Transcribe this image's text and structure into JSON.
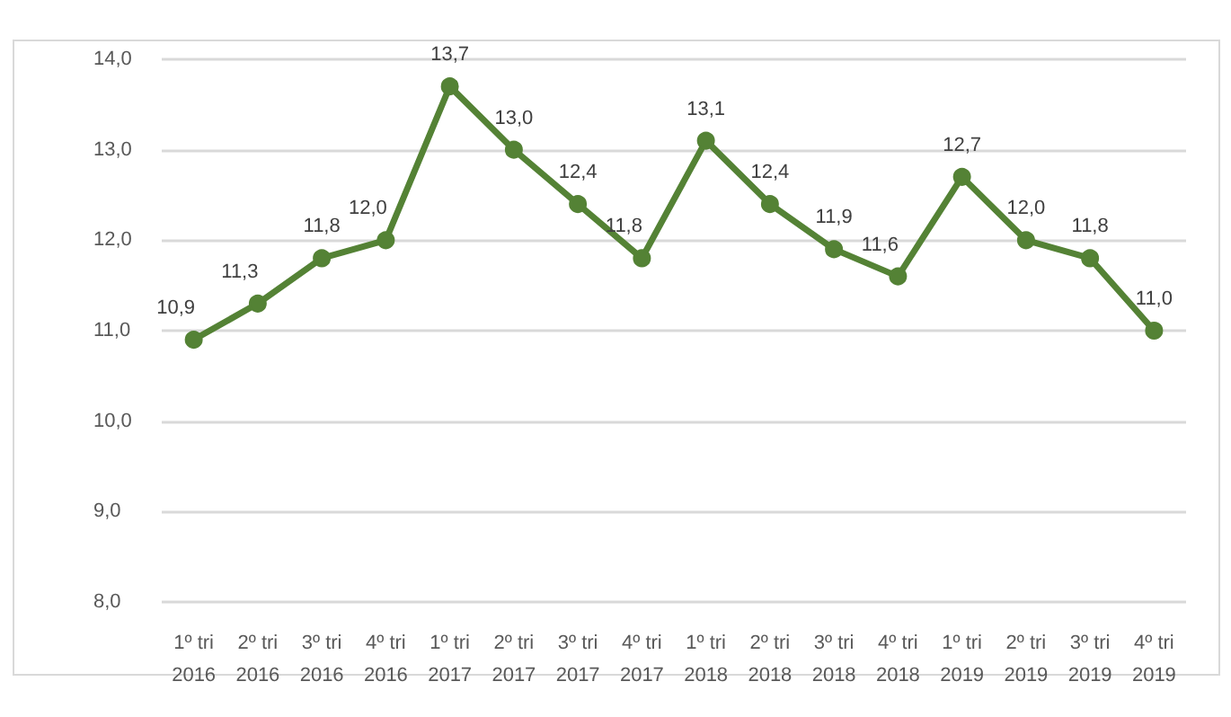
{
  "chart_data": {
    "type": "line",
    "categories": [
      "1º tri\n2016",
      "2º tri\n2016",
      "3º tri\n2016",
      "4º tri\n2016",
      "1º tri\n2017",
      "2º tri\n2017",
      "3º tri\n2017",
      "4º tri\n2017",
      "1º tri\n2018",
      "2º tri\n2018",
      "3º tri\n2018",
      "4º tri\n2018",
      "1º tri\n2019",
      "2º tri\n2019",
      "3º tri\n2019",
      "4º tri\n2019"
    ],
    "series": [
      {
        "color": "#548235",
        "values": [
          10.9,
          11.3,
          11.8,
          12.0,
          13.7,
          13.0,
          12.4,
          11.8,
          13.1,
          12.4,
          11.9,
          11.6,
          12.7,
          12.0,
          11.8,
          11.0
        ],
        "value_labels": [
          "10,9",
          "11,3",
          "11,8",
          "12,0",
          "13,7",
          "13,0",
          "12,4",
          "11,8",
          "13,1",
          "12,4",
          "11,9",
          "11,6",
          "12,7",
          "12,0",
          "11,8",
          "11,0"
        ]
      }
    ],
    "ylim": [
      8,
      14
    ],
    "yticks": [
      {
        "value": 8,
        "label": "8,0"
      },
      {
        "value": 9,
        "label": "9,0"
      },
      {
        "value": 10,
        "label": "10,0"
      },
      {
        "value": 11,
        "label": "11,0"
      },
      {
        "value": 12,
        "label": "12,0"
      },
      {
        "value": 13,
        "label": "13,0"
      },
      {
        "value": 14,
        "label": "14,0"
      }
    ],
    "grid": "y",
    "marker": "circle",
    "line_style": "solid"
  }
}
